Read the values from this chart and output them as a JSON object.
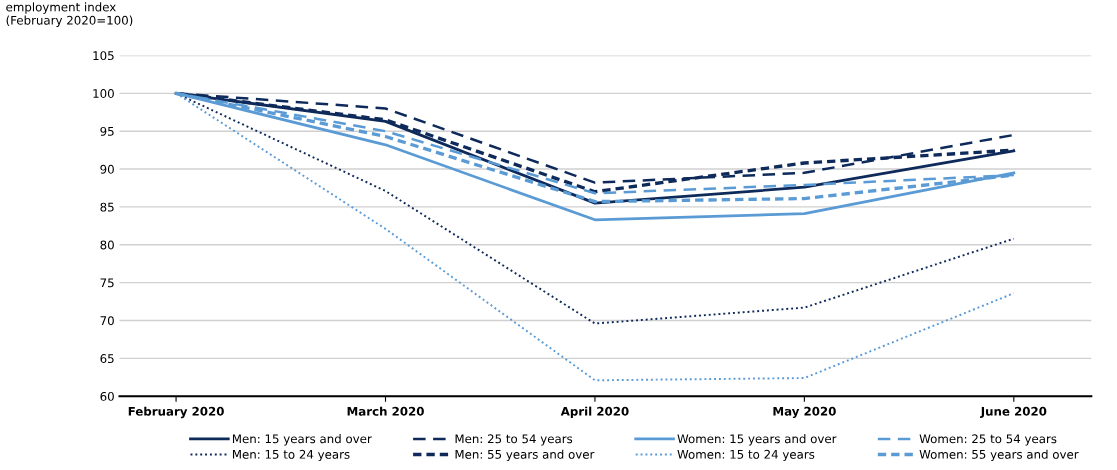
{
  "chart_data": {
    "type": "line",
    "ylabel": "employment index\n(February 2020=100)",
    "categories": [
      "February 2020",
      "March 2020",
      "April 2020",
      "May 2020",
      "June 2020"
    ],
    "ylim": [
      60,
      105
    ],
    "yticks": [
      60,
      65,
      70,
      75,
      80,
      85,
      90,
      95,
      100,
      105
    ],
    "grid": "y",
    "legend": "bottom",
    "marker": "none",
    "series": [
      {
        "name": "Men: 15 years and over",
        "color": "#0e2a5a",
        "line_style": "solid",
        "values": [
          100,
          96.3,
          85.5,
          87.6,
          92.4
        ]
      },
      {
        "name": "Men: 15 to 24 years",
        "color": "#0e2a5a",
        "line_style": "dotted",
        "values": [
          100,
          87.1,
          69.6,
          71.7,
          80.8
        ]
      },
      {
        "name": "Men: 25 to 54 years",
        "color": "#0e2a5a",
        "line_style": "dashed",
        "values": [
          100,
          98.0,
          88.2,
          89.5,
          94.5
        ]
      },
      {
        "name": "Men: 55 years and over",
        "color": "#0e2a5a",
        "line_style": "shortdash",
        "values": [
          100,
          96.5,
          87.0,
          90.8,
          92.5
        ]
      },
      {
        "name": "Women: 15 years and over",
        "color": "#5b9bd5",
        "line_style": "solid",
        "values": [
          100,
          93.2,
          83.3,
          84.1,
          89.5
        ]
      },
      {
        "name": "Women: 15 to 24 years",
        "color": "#5b9bd5",
        "line_style": "dotted",
        "values": [
          100,
          82.1,
          62.1,
          62.4,
          73.6
        ]
      },
      {
        "name": "Women: 25 to 54 years",
        "color": "#5b9bd5",
        "line_style": "dashed",
        "values": [
          100,
          95.0,
          86.8,
          87.9,
          89.2
        ]
      },
      {
        "name": "Women: 55 years and over",
        "color": "#5b9bd5",
        "line_style": "shortdash",
        "values": [
          100,
          94.3,
          85.7,
          86.1,
          89.2
        ]
      }
    ]
  }
}
